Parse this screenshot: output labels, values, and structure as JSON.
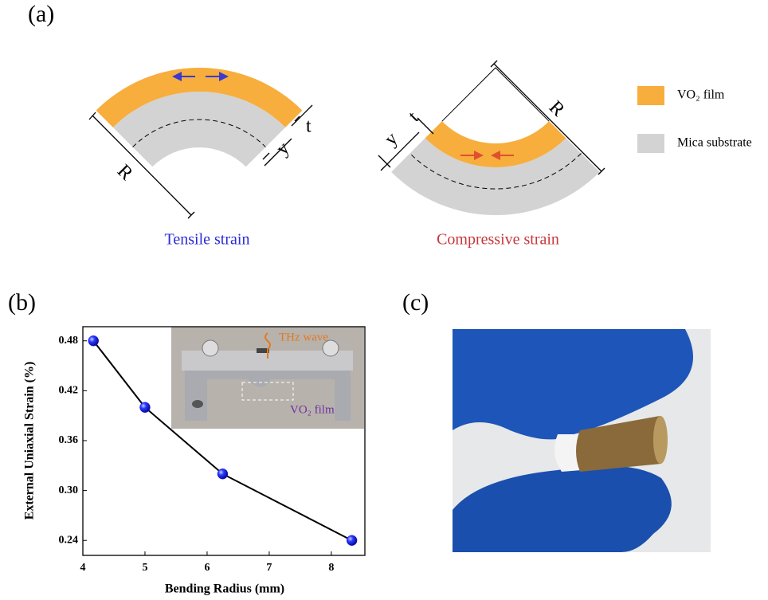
{
  "panel_labels": {
    "a": "(a)",
    "b": "(b)",
    "c": "(c)"
  },
  "diagram": {
    "tensile": {
      "caption": "Tensile strain",
      "R": "R",
      "t": "t",
      "y": "y"
    },
    "compressive": {
      "caption": "Compressive strain",
      "R": "R",
      "t": "t",
      "y": "y"
    },
    "legend": [
      {
        "label": "VO₂ film",
        "color": "#f7ae3c"
      },
      {
        "label": "Mica substrate",
        "color": "#d3d3d3"
      }
    ]
  },
  "chart_data": {
    "type": "line",
    "x_label": "Bending Radius (mm)",
    "y_label": "External Uniaxial Strain (%)",
    "x": [
      4.17,
      5,
      6.25,
      8.33
    ],
    "values": [
      0.48,
      0.4,
      0.32,
      0.24
    ],
    "color": "#1a1aff",
    "xlim": [
      4,
      8.54
    ],
    "xticks": [
      4,
      5,
      6,
      7,
      8
    ],
    "ylim": [
      0.222,
      0.497
    ],
    "yticks": [
      {
        "value": 0.24,
        "label": "0.24"
      },
      {
        "value": 0.3,
        "label": "0.30"
      },
      {
        "value": 0.36,
        "label": "0.36"
      },
      {
        "value": 0.42,
        "label": "0.42"
      },
      {
        "value": 0.48,
        "label": "0.48"
      }
    ],
    "inset": {
      "beam": "THz wave",
      "sample": "VO₂ film"
    }
  }
}
